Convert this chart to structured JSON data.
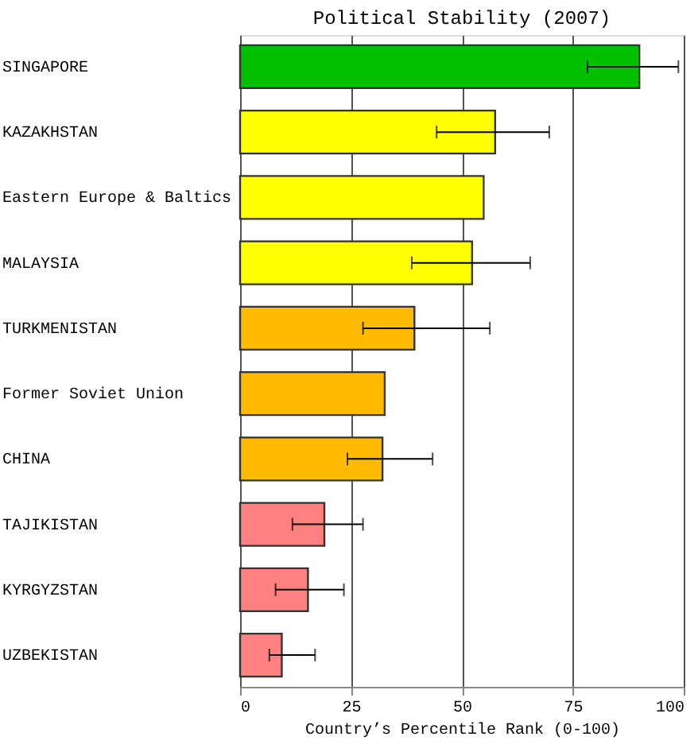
{
  "chart_data": {
    "type": "bar",
    "orientation": "horizontal",
    "title": "Political Stability (2007)",
    "xlabel": "Country’s Percentile Rank (0-100)",
    "categories": [
      "SINGAPORE",
      "KAZAKHSTAN",
      "Eastern Europe & Baltics",
      "MALAYSIA",
      "TURKMENISTAN",
      "Former Soviet Union",
      "CHINA",
      "TAJIKISTAN",
      "KYRGYZSTAN",
      "UZBEKISTAN"
    ],
    "values": [
      90.0,
      57.5,
      54.9,
      52.3,
      39.3,
      32.6,
      32.1,
      19.0,
      15.3,
      9.4
    ],
    "errors": [
      [
        78.3,
        98.8
      ],
      [
        44.3,
        69.7
      ],
      null,
      [
        38.7,
        65.4
      ],
      [
        27.7,
        56.3
      ],
      null,
      [
        24.2,
        43.4
      ],
      [
        11.8,
        27.7
      ],
      [
        8.0,
        23.4
      ],
      [
        6.6,
        16.9
      ]
    ],
    "colors": [
      "#00c000",
      "#ffff00",
      "#ffff00",
      "#ffff00",
      "#ffbb00",
      "#ffbb00",
      "#ffbb00",
      "#ff8080",
      "#ff8080",
      "#ff8080"
    ],
    "xlim": [
      0,
      100
    ],
    "xticks": [
      0,
      25,
      50,
      75,
      100
    ],
    "grid": "x"
  }
}
